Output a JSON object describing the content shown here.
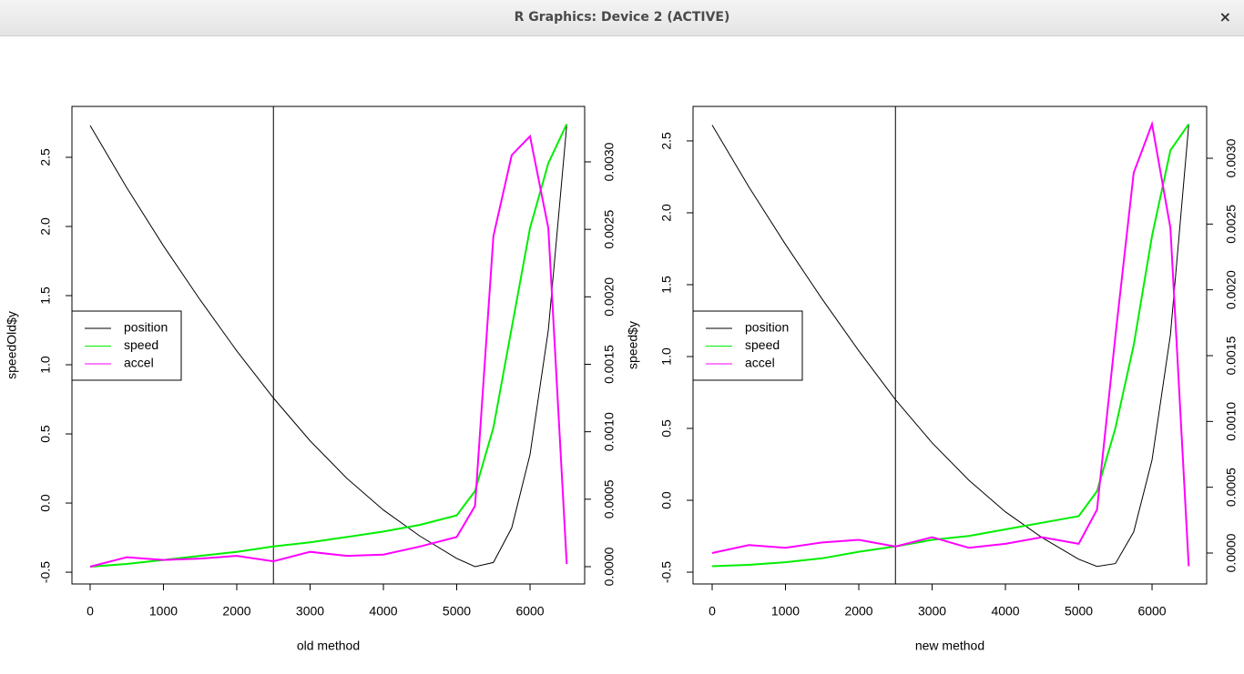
{
  "window": {
    "title": "R Graphics: Device 2 (ACTIVE)",
    "close": "×"
  },
  "chart_data": [
    {
      "type": "line",
      "x_label": "old method",
      "y_label": "speedOld$y",
      "legend": "left",
      "vline": 2500,
      "x": [
        0,
        500,
        1000,
        1500,
        2000,
        2500,
        3000,
        3500,
        4000,
        4500,
        5000,
        5250,
        5500,
        5750,
        6000,
        6250,
        6500
      ],
      "xlim": [
        -248,
        6745
      ],
      "xticks": [
        0,
        1000,
        2000,
        3000,
        4000,
        5000,
        6000
      ],
      "ylim": [
        -0.585,
        2.868
      ],
      "yticks": [
        -0.5,
        {
          "value": 0,
          "label": "0.0"
        },
        0.5,
        {
          "value": 1,
          "label": "1.0"
        },
        1.5,
        {
          "value": 2,
          "label": "2.0"
        },
        2.5
      ],
      "y2lim": [
        -0.000128,
        0.003411
      ],
      "y2ticks": [
        {
          "value": 0,
          "label": "0.0000"
        },
        {
          "value": 0.0005,
          "label": "0.0005"
        },
        {
          "value": 0.001,
          "label": "0.0010"
        },
        {
          "value": 0.0015,
          "label": "0.0015"
        },
        {
          "value": 0.002,
          "label": "0.0020"
        },
        {
          "value": 0.0025,
          "label": "0.0025"
        },
        {
          "value": 0.003,
          "label": "0.0030"
        }
      ],
      "series": [
        {
          "name": "position",
          "color": "#000000",
          "values": [
            2.73,
            2.28,
            1.86,
            1.47,
            1.1,
            0.76,
            0.45,
            0.18,
            -0.05,
            -0.24,
            -0.4,
            -0.46,
            -0.43,
            -0.18,
            0.35,
            1.25,
            2.73
          ]
        },
        {
          "name": "speed",
          "color": "#00ee00",
          "axis": "y2",
          "values": [
            0,
            2e-05,
            5e-05,
            8e-05,
            0.00011,
            0.00015,
            0.00018,
            0.00022,
            0.00026,
            0.00031,
            0.00038,
            0.00056,
            0.00103,
            0.00177,
            0.00251,
            0.00299,
            0.00328
          ]
        },
        {
          "name": "accel",
          "color": "#ff00ff",
          "axis": "y2",
          "values": [
            0,
            7e-05,
            5e-05,
            6e-05,
            8e-05,
            4e-05,
            0.00011,
            8e-05,
            9e-05,
            0.00015,
            0.00022,
            0.00045,
            0.00245,
            0.00305,
            0.00319,
            0.00251,
            2e-05
          ]
        }
      ]
    },
    {
      "type": "line",
      "x_label": "new method",
      "y_label": "speed$y",
      "legend": "left",
      "vline": 2500,
      "x": [
        0,
        500,
        1000,
        1500,
        2000,
        2500,
        3000,
        3500,
        4000,
        4500,
        5000,
        5250,
        5500,
        5750,
        6000,
        6250,
        6500
      ],
      "xlim": [
        -261,
        6745
      ],
      "xticks": [
        0,
        1000,
        2000,
        3000,
        4000,
        5000,
        6000
      ],
      "ylim": [
        -0.582,
        2.74
      ],
      "yticks": [
        -0.5,
        {
          "value": 0,
          "label": "0.0"
        },
        0.5,
        {
          "value": 1,
          "label": "1.0"
        },
        1.5,
        {
          "value": 2,
          "label": "2.0"
        },
        2.5
      ],
      "y2lim": [
        -0.000235,
        0.003394
      ],
      "y2ticks": [
        {
          "value": 0,
          "label": "0.0000"
        },
        {
          "value": 0.0005,
          "label": "0.0005"
        },
        {
          "value": 0.001,
          "label": "0.0010"
        },
        {
          "value": 0.0015,
          "label": "0.0015"
        },
        {
          "value": 0.002,
          "label": "0.0020"
        },
        {
          "value": 0.0025,
          "label": "0.0025"
        },
        {
          "value": 0.003,
          "label": "0.0030"
        }
      ],
      "series": [
        {
          "name": "position",
          "color": "#000000",
          "values": [
            2.61,
            2.18,
            1.78,
            1.4,
            1.04,
            0.7,
            0.4,
            0.14,
            -0.08,
            -0.26,
            -0.41,
            -0.46,
            -0.44,
            -0.22,
            0.28,
            1.15,
            2.61
          ]
        },
        {
          "name": "speed",
          "color": "#00ee00",
          "axis": "y2",
          "values": [
            -0.0001,
            -9e-05,
            -7e-05,
            -4e-05,
            1e-05,
            5e-05,
            0.0001,
            0.00013,
            0.00018,
            0.00023,
            0.00028,
            0.00047,
            0.00095,
            0.00158,
            0.00241,
            0.00306,
            0.00326
          ]
        },
        {
          "name": "accel",
          "color": "#ff00ff",
          "axis": "y2",
          "values": [
            0,
            6e-05,
            4e-05,
            8e-05,
            0.0001,
            5e-05,
            0.00012,
            4e-05,
            7e-05,
            0.00012,
            7e-05,
            0.00033,
            0.00165,
            0.00289,
            0.00326,
            0.00247,
            -0.0001
          ]
        }
      ]
    }
  ]
}
